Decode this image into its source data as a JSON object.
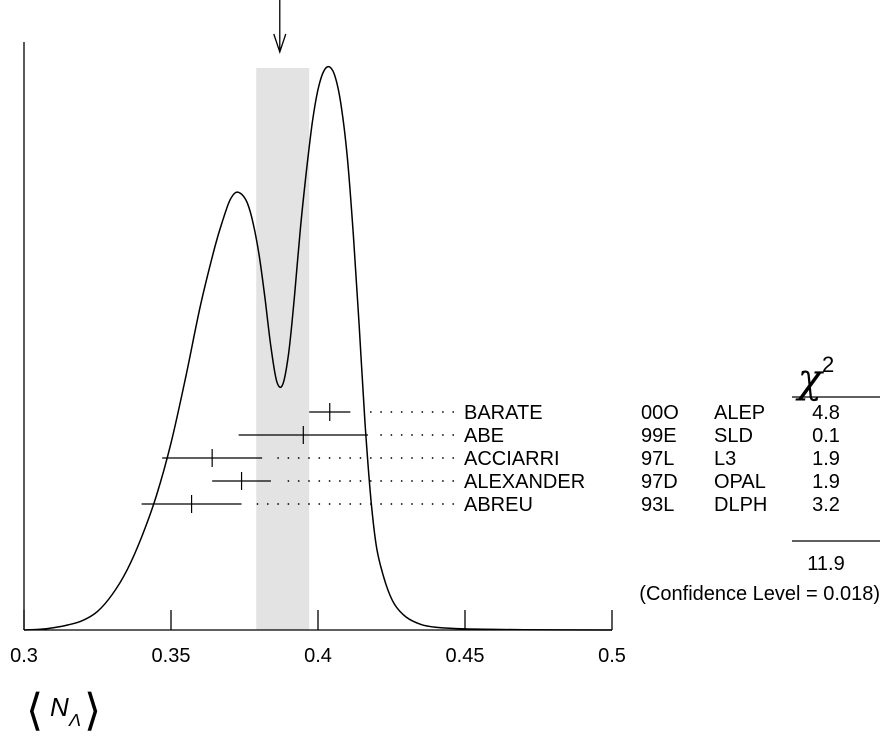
{
  "chart_data": {
    "type": "line",
    "x_axis": {
      "label_var": "N",
      "label_sub": "Λ",
      "range": [
        0.3,
        0.5
      ],
      "ticks": [
        "0.3",
        "0.35",
        "0.4",
        "0.45",
        "0.5"
      ]
    },
    "ideogram": {
      "points": [
        [
          0.3,
          0.0
        ],
        [
          0.305,
          0.001
        ],
        [
          0.31,
          0.004
        ],
        [
          0.315,
          0.009
        ],
        [
          0.32,
          0.017
        ],
        [
          0.325,
          0.033
        ],
        [
          0.33,
          0.063
        ],
        [
          0.335,
          0.106
        ],
        [
          0.34,
          0.165
        ],
        [
          0.345,
          0.238
        ],
        [
          0.35,
          0.332
        ],
        [
          0.355,
          0.449
        ],
        [
          0.36,
          0.576
        ],
        [
          0.365,
          0.682
        ],
        [
          0.368,
          0.734
        ],
        [
          0.37,
          0.763
        ],
        [
          0.372,
          0.777
        ],
        [
          0.374,
          0.774
        ],
        [
          0.376,
          0.758
        ],
        [
          0.378,
          0.721
        ],
        [
          0.38,
          0.665
        ],
        [
          0.382,
          0.588
        ],
        [
          0.384,
          0.502
        ],
        [
          0.386,
          0.441
        ],
        [
          0.388,
          0.436
        ],
        [
          0.39,
          0.491
        ],
        [
          0.392,
          0.593
        ],
        [
          0.394,
          0.713
        ],
        [
          0.396,
          0.812
        ],
        [
          0.398,
          0.899
        ],
        [
          0.4,
          0.96
        ],
        [
          0.402,
          0.993
        ],
        [
          0.404,
          1.0
        ],
        [
          0.406,
          0.98
        ],
        [
          0.408,
          0.927
        ],
        [
          0.41,
          0.838
        ],
        [
          0.412,
          0.703
        ],
        [
          0.414,
          0.54
        ],
        [
          0.416,
          0.368
        ],
        [
          0.418,
          0.232
        ],
        [
          0.42,
          0.144
        ],
        [
          0.423,
          0.083
        ],
        [
          0.426,
          0.046
        ],
        [
          0.43,
          0.023
        ],
        [
          0.435,
          0.01
        ],
        [
          0.44,
          0.005
        ],
        [
          0.45,
          0.002
        ],
        [
          0.47,
          0.0005
        ],
        [
          0.5,
          0.0
        ]
      ]
    },
    "shaded_band": [
      0.379,
      0.397
    ],
    "arrow_x": 0.387,
    "chi2_header": "χ",
    "chi2_header_sup": "2",
    "measurements": [
      {
        "author": "BARATE",
        "ref": "00O",
        "exp": "ALEP",
        "value": 0.404,
        "error": 0.007,
        "chi2": "4.8"
      },
      {
        "author": "ABE",
        "ref": "99E",
        "exp": "SLD",
        "value": 0.395,
        "error": 0.022,
        "chi2": "0.1"
      },
      {
        "author": "ACCIARRI",
        "ref": "97L",
        "exp": "L3",
        "value": 0.364,
        "error": 0.017,
        "chi2": "1.9"
      },
      {
        "author": "ALEXANDER",
        "ref": "97D",
        "exp": "OPAL",
        "value": 0.374,
        "error": 0.01,
        "chi2": "1.9"
      },
      {
        "author": "ABREU",
        "ref": "93L",
        "exp": "DLPH",
        "value": 0.357,
        "error": 0.017,
        "chi2": "3.2"
      }
    ],
    "chi2_total": "11.9",
    "confidence_text": "(Confidence Level = 0.018)"
  }
}
